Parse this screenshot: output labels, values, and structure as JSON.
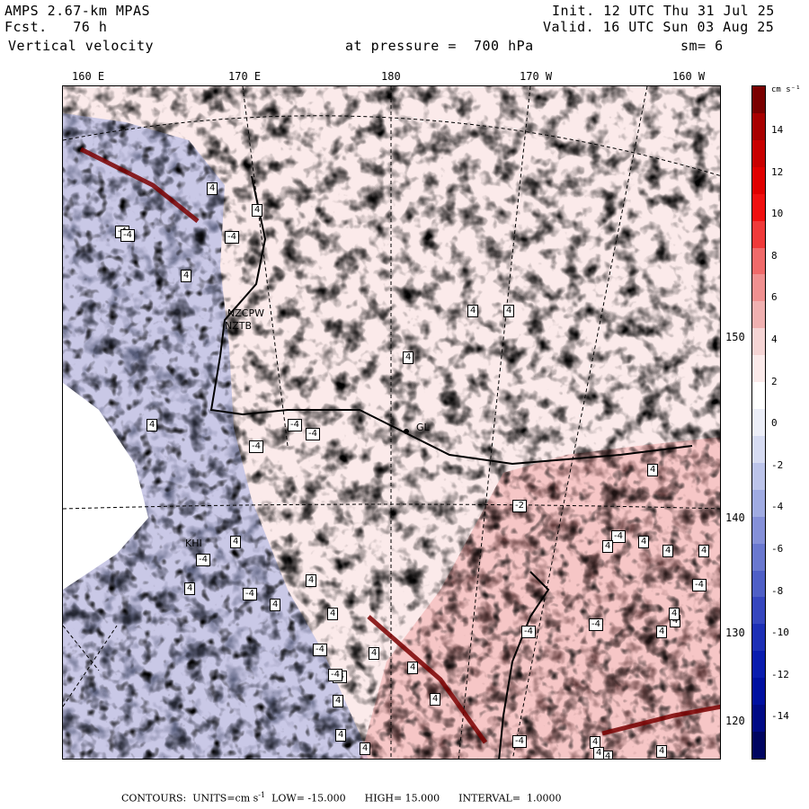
{
  "header": {
    "model": "AMPS 2.67-km MPAS",
    "fcst_label": "Fcst.",
    "fcst_value": "76 h",
    "field": "Vertical velocity",
    "pressure": "at pressure =  700 hPa",
    "init": "Init. 12 UTC Thu 31 Jul 25",
    "valid": "Valid. 16 UTC Sun 03 Aug 25",
    "smooth": "sm= 6"
  },
  "lon_labels": [
    "160 E",
    "170 E",
    "180",
    "170 W",
    "160 W"
  ],
  "lat_labels": [
    "150 W",
    "140 W",
    "130 W",
    "120 W"
  ],
  "colorbar": {
    "unit": "cm s⁻¹",
    "ticks": [
      "14",
      "12",
      "10",
      "8",
      "6",
      "4",
      "2",
      "0",
      "-2",
      "-4",
      "-6",
      "-8",
      "-10",
      "-12",
      "-14"
    ],
    "colors": [
      "#7a0000",
      "#a80000",
      "#c80000",
      "#e00000",
      "#f01010",
      "#f03a3a",
      "#f06a6a",
      "#f09090",
      "#f0b0b0",
      "#f5d4d4",
      "#fbeaea",
      "#ffffff",
      "#eceef8",
      "#d6dbf2",
      "#bcc4ea",
      "#a0abe2",
      "#8590d8",
      "#6a78cf",
      "#4f5fc6",
      "#3646be",
      "#1d2fb5",
      "#0a1cae",
      "#0010a0",
      "#000a85",
      "#000560"
    ]
  },
  "map_labels": {
    "station_1": "NZCPW",
    "station_2": "NZTB",
    "station_3": "GL",
    "station_4": "KHI"
  },
  "contour_boxes": [
    "-4",
    "4",
    "-4",
    "4",
    "-4",
    "4",
    "4",
    "-4",
    "-4",
    "4",
    "4",
    "4",
    "-4",
    "4",
    "-4",
    "4",
    "4",
    "-4",
    "4",
    "4",
    "-4",
    "4",
    "4",
    "-2",
    "-4",
    "4",
    "4",
    "-4",
    "4",
    "4",
    "4",
    "4",
    "-4",
    "4",
    "-4",
    "4",
    "4",
    "4",
    "-4",
    "4",
    "4",
    "4",
    "4",
    "-4",
    "4",
    "4",
    "-4"
  ],
  "footer": {
    "contours": "CONTOURS:",
    "units_label": "UNITS=cm s",
    "units_sup": "-1",
    "low": "LOW= -15.000",
    "high": "HIGH= 15.000",
    "interval": "INTERVAL=  1.0000"
  }
}
